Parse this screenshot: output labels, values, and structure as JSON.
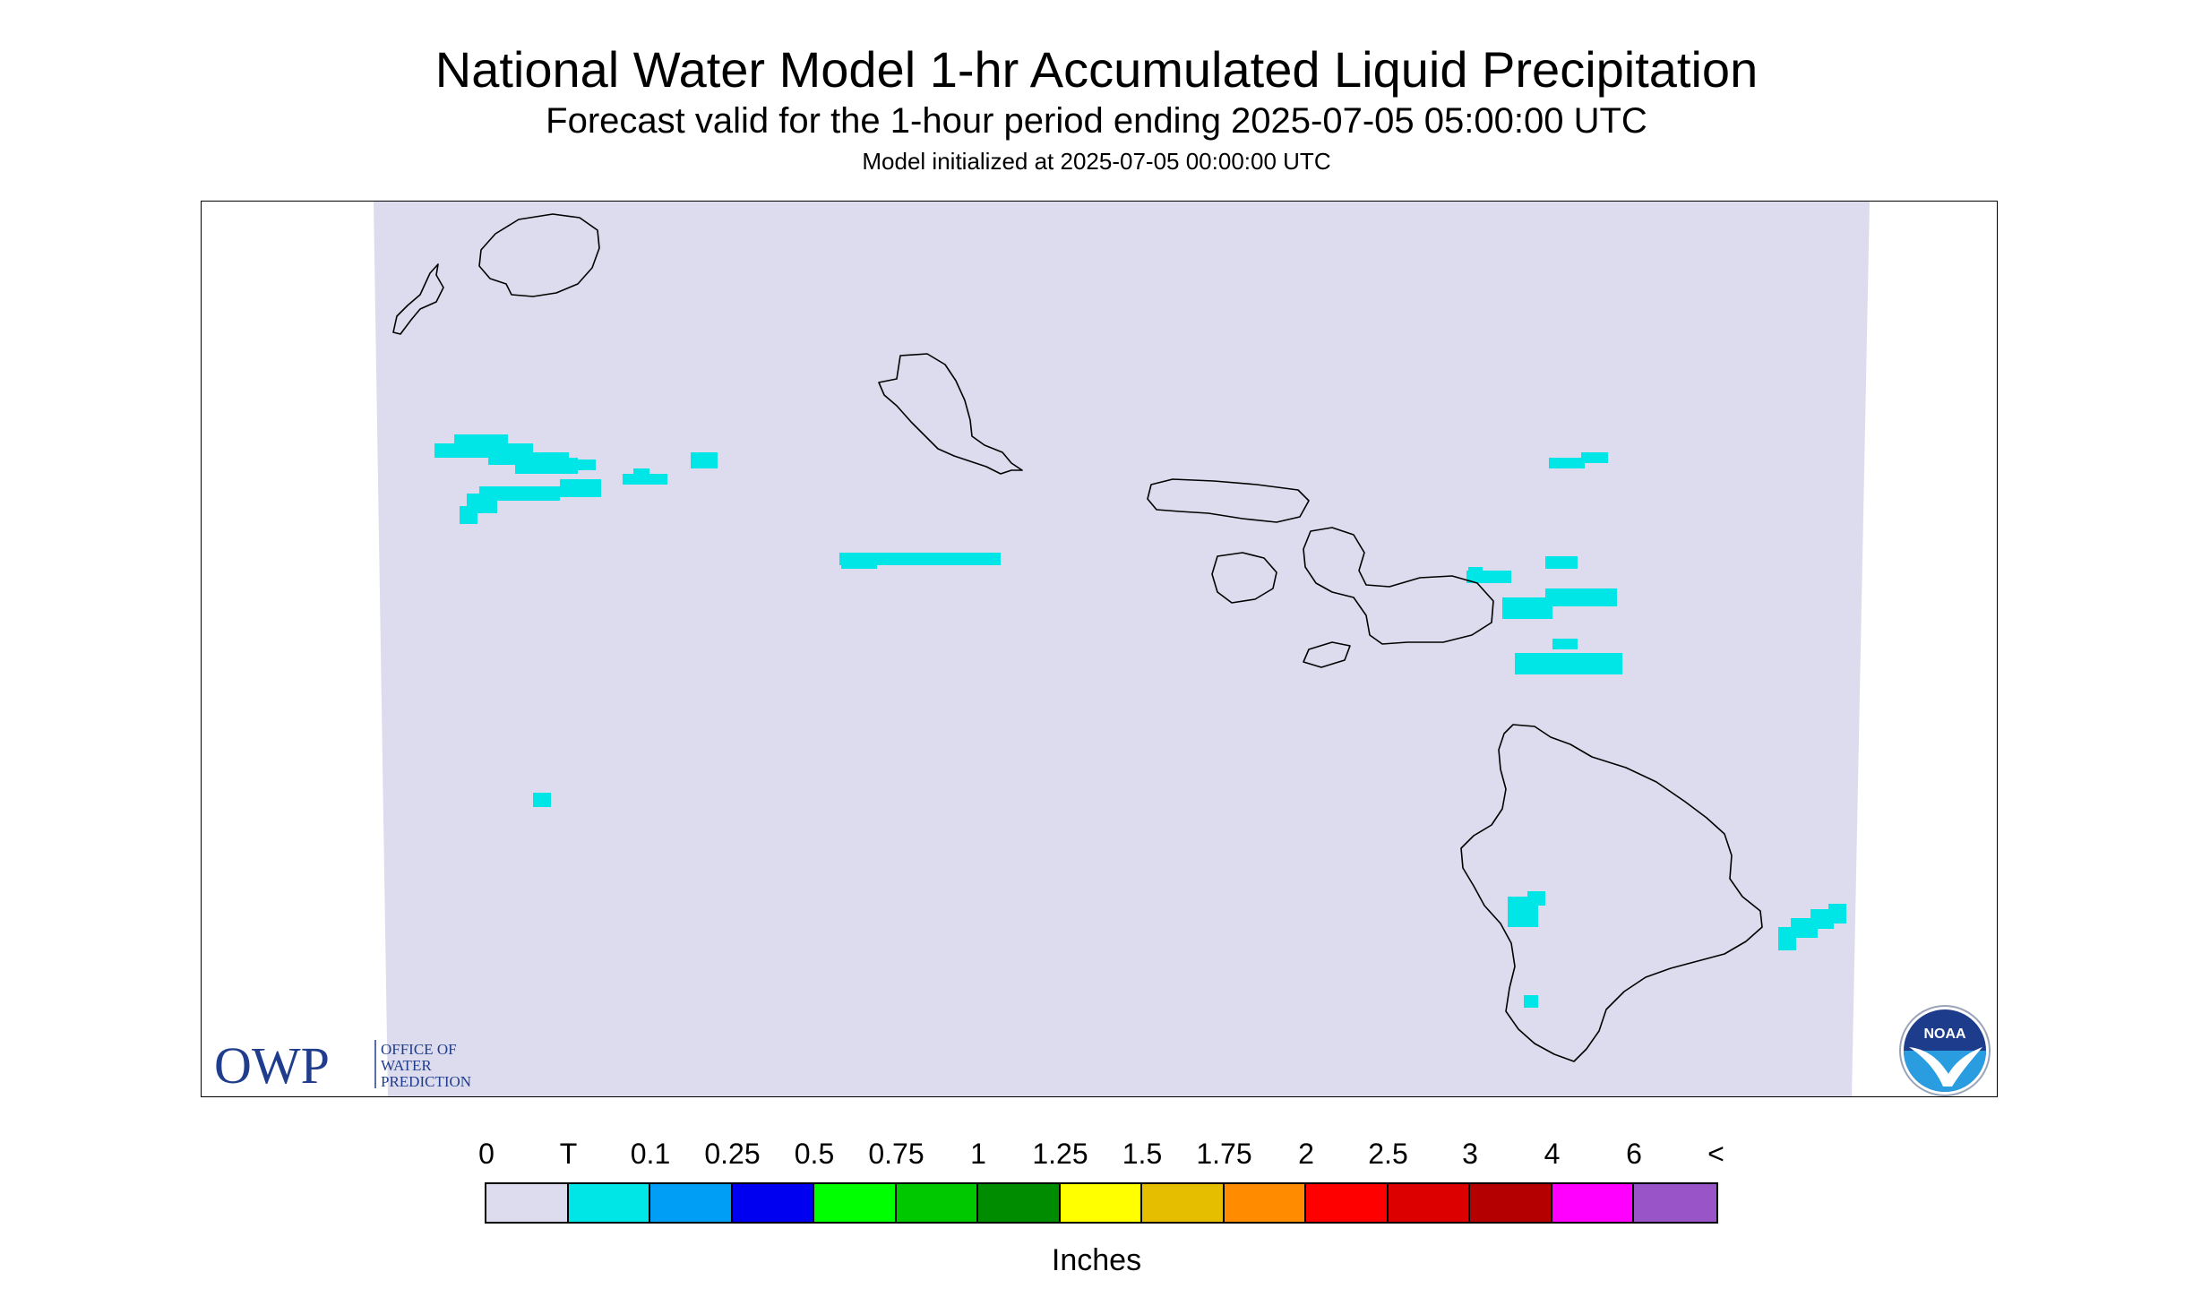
{
  "title": "National Water Model 1-hr Accumulated Liquid Precipitation",
  "subtitle": "Forecast valid for the 1-hour period ending 2025-07-05 05:00:00 UTC",
  "init_text": "Model initialized at 2025-07-05 00:00:00 UTC",
  "colors": {
    "domain_fill": "#dcdcee",
    "trace": "#00e5e5",
    "coastline": "#000000"
  },
  "owp_logo": {
    "letters": "OWP",
    "line1": "OFFICE OF",
    "line2": "WATER",
    "line3": "PREDICTION"
  },
  "noaa_logo": {
    "text": "NOAA"
  },
  "legend": {
    "labels": [
      "0",
      "T",
      "0.1",
      "0.25",
      "0.5",
      "0.75",
      "1",
      "1.25",
      "1.5",
      "1.75",
      "2",
      "2.5",
      "3",
      "4",
      "6",
      "<"
    ],
    "colors": [
      "#dcdcee",
      "#00e5e5",
      "#009ef5",
      "#0000f0",
      "#00ff00",
      "#00c800",
      "#008c00",
      "#ffff00",
      "#e6be00",
      "#ff8c00",
      "#ff0000",
      "#dc0000",
      "#b40000",
      "#ff00ff",
      "#9955c8"
    ],
    "units": "Inches"
  },
  "map": {
    "islands": [
      "Niihau",
      "Kauai",
      "Oahu",
      "Molokai",
      "Lanai",
      "Maui",
      "Kahoolawe",
      "Hawaii"
    ]
  }
}
